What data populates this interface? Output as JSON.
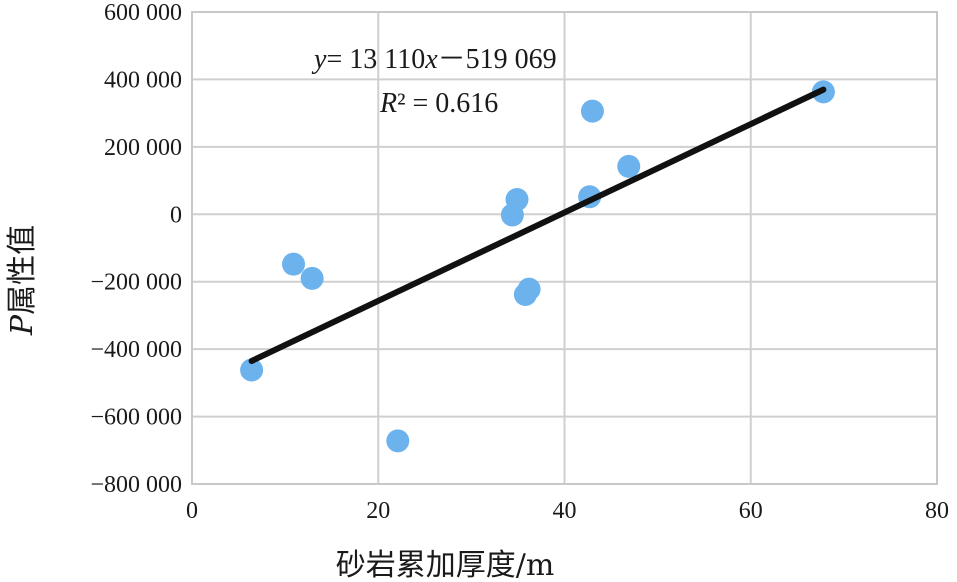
{
  "chart_data": {
    "type": "scatter",
    "xlabel": "砂岩累加厚度/m",
    "ylabel_prefix": "P",
    "ylabel_rest": "属性值",
    "xlim": [
      0,
      80
    ],
    "ylim": [
      -800000,
      600000
    ],
    "x_ticks": [
      0,
      20,
      40,
      60,
      80
    ],
    "x_tick_labels": [
      "0",
      "20",
      "40",
      "60",
      "80"
    ],
    "y_ticks": [
      -800000,
      -600000,
      -400000,
      -200000,
      0,
      200000,
      400000,
      600000
    ],
    "y_tick_labels": [
      "−800 000",
      "−600 000",
      "−400 000",
      "−200 000",
      "0",
      "200 000",
      "400 000",
      "600 000"
    ],
    "grid": true,
    "series": [
      {
        "points": [
          {
            "x": 6.4,
            "y": -462000
          },
          {
            "x": 10.9,
            "y": -148000
          },
          {
            "x": 12.9,
            "y": -190000
          },
          {
            "x": 22.1,
            "y": -672000
          },
          {
            "x": 34.4,
            "y": -2000
          },
          {
            "x": 34.9,
            "y": 44000
          },
          {
            "x": 35.8,
            "y": -238000
          },
          {
            "x": 36.2,
            "y": -222000
          },
          {
            "x": 42.7,
            "y": 52000
          },
          {
            "x": 43.0,
            "y": 306000
          },
          {
            "x": 46.9,
            "y": 142000
          },
          {
            "x": 67.8,
            "y": 363000
          }
        ],
        "color": "#6cb3ee"
      }
    ],
    "trendline": {
      "slope": 13110,
      "intercept": -519069,
      "x_range": [
        6.4,
        67.8
      ],
      "color": "#111111"
    },
    "annotations": {
      "eq_y": "y",
      "eq_rest": "= 13 110",
      "eq_x": "x",
      "eq_tail": "－519 069",
      "r2_label": "R",
      "r2_sup": "²",
      "r2_value": " = 0.616"
    }
  }
}
